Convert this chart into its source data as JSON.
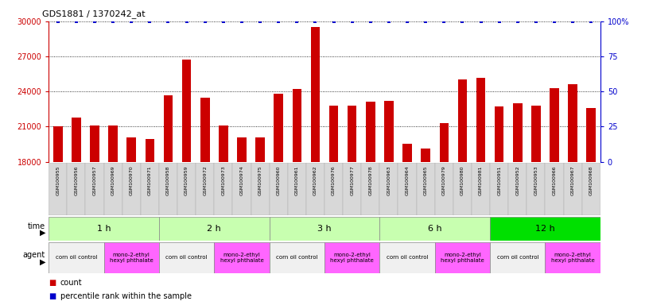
{
  "title": "GDS1881 / 1370242_at",
  "samples": [
    "GSM100955",
    "GSM100956",
    "GSM100957",
    "GSM100969",
    "GSM100970",
    "GSM100971",
    "GSM100958",
    "GSM100959",
    "GSM100972",
    "GSM100973",
    "GSM100974",
    "GSM100975",
    "GSM100960",
    "GSM100961",
    "GSM100962",
    "GSM100976",
    "GSM100977",
    "GSM100978",
    "GSM100963",
    "GSM100964",
    "GSM100965",
    "GSM100979",
    "GSM100980",
    "GSM100981",
    "GSM100951",
    "GSM100952",
    "GSM100953",
    "GSM100966",
    "GSM100967",
    "GSM100968"
  ],
  "counts": [
    21000,
    21800,
    21100,
    21100,
    20100,
    19950,
    23700,
    26700,
    23500,
    21100,
    20100,
    20100,
    23800,
    24200,
    29500,
    22800,
    22800,
    23100,
    23200,
    19500,
    19100,
    21300,
    25000,
    25200,
    22700,
    23000,
    22800,
    24300,
    24600,
    22600
  ],
  "percentile": [
    100,
    100,
    100,
    100,
    100,
    100,
    100,
    100,
    100,
    100,
    100,
    100,
    100,
    100,
    100,
    100,
    100,
    100,
    100,
    100,
    100,
    100,
    100,
    100,
    100,
    100,
    100,
    100,
    100,
    100
  ],
  "ylim_left": [
    18000,
    30000
  ],
  "ylim_right": [
    0,
    100
  ],
  "yticks_left": [
    18000,
    21000,
    24000,
    27000,
    30000
  ],
  "yticks_right": [
    0,
    25,
    50,
    75,
    100
  ],
  "bar_color": "#cc0000",
  "percentile_color": "#0000cc",
  "bg_color": "#ffffff",
  "time_groups": [
    {
      "label": "1 h",
      "start": 0,
      "end": 6,
      "color": "#c8ffb0"
    },
    {
      "label": "2 h",
      "start": 6,
      "end": 12,
      "color": "#c8ffb0"
    },
    {
      "label": "3 h",
      "start": 12,
      "end": 18,
      "color": "#c8ffb0"
    },
    {
      "label": "6 h",
      "start": 18,
      "end": 24,
      "color": "#c8ffb0"
    },
    {
      "label": "12 h",
      "start": 24,
      "end": 30,
      "color": "#00e000"
    }
  ],
  "agent_groups": [
    {
      "label": "corn oil control",
      "start": 0,
      "end": 3,
      "color": "#f0f0f0"
    },
    {
      "label": "mono-2-ethyl\nhexyl phthalate",
      "start": 3,
      "end": 6,
      "color": "#ff66ff"
    },
    {
      "label": "corn oil control",
      "start": 6,
      "end": 9,
      "color": "#f0f0f0"
    },
    {
      "label": "mono-2-ethyl\nhexyl phthalate",
      "start": 9,
      "end": 12,
      "color": "#ff66ff"
    },
    {
      "label": "corn oil control",
      "start": 12,
      "end": 15,
      "color": "#f0f0f0"
    },
    {
      "label": "mono-2-ethyl\nhexyl phthalate",
      "start": 15,
      "end": 18,
      "color": "#ff66ff"
    },
    {
      "label": "corn oil control",
      "start": 18,
      "end": 21,
      "color": "#f0f0f0"
    },
    {
      "label": "mono-2-ethyl\nhexyl phthalate",
      "start": 21,
      "end": 24,
      "color": "#ff66ff"
    },
    {
      "label": "corn oil control",
      "start": 24,
      "end": 27,
      "color": "#f0f0f0"
    },
    {
      "label": "mono-2-ethyl\nhexyl phthalate",
      "start": 27,
      "end": 30,
      "color": "#ff66ff"
    }
  ],
  "legend_items": [
    {
      "label": "count",
      "color": "#cc0000"
    },
    {
      "label": "percentile rank within the sample",
      "color": "#0000cc"
    }
  ],
  "fig_width": 8.16,
  "fig_height": 3.84,
  "dpi": 100
}
